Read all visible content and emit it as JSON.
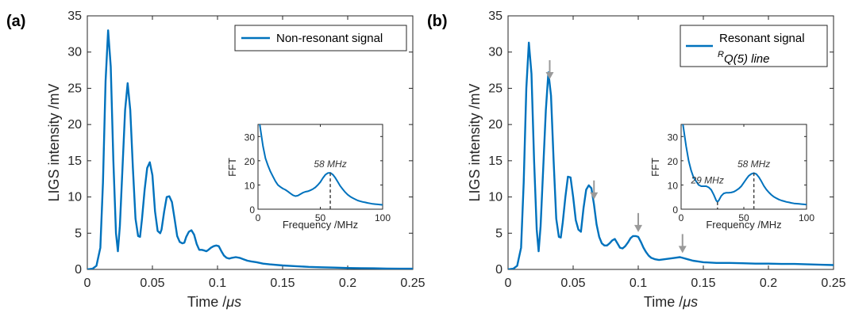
{
  "colors": {
    "series": "#0072BD",
    "arrow": "#9a9a9a",
    "axis": "#262626",
    "marker": "#444444"
  },
  "chart_data": [
    {
      "panel_label": "(a)",
      "type": "line",
      "xlabel": "Time /",
      "xlabel_unit": "μs",
      "ylabel": "LIGS intensity /mV",
      "xlim": [
        0,
        0.25
      ],
      "ylim": [
        0,
        35
      ],
      "xticks": [
        "0",
        "0.05",
        "0.1",
        "0.15",
        "0.2",
        "0.25"
      ],
      "yticks": [
        "0",
        "5",
        "10",
        "15",
        "20",
        "25",
        "30",
        "35"
      ],
      "legend": {
        "position": "top-right",
        "entries": [
          "Non-resonant signal"
        ]
      },
      "series": [
        {
          "name": "Non-resonant signal",
          "x": [
            0,
            0.004,
            0.007,
            0.01,
            0.012,
            0.014,
            0.016,
            0.018,
            0.02,
            0.022,
            0.0235,
            0.025,
            0.027,
            0.029,
            0.031,
            0.033,
            0.035,
            0.037,
            0.039,
            0.0405,
            0.042,
            0.044,
            0.046,
            0.048,
            0.05,
            0.052,
            0.054,
            0.056,
            0.057,
            0.059,
            0.061,
            0.063,
            0.065,
            0.067,
            0.069,
            0.071,
            0.073,
            0.0745,
            0.076,
            0.078,
            0.08,
            0.082,
            0.084,
            0.086,
            0.088,
            0.09,
            0.0915,
            0.093,
            0.095,
            0.097,
            0.099,
            0.101,
            0.103,
            0.105,
            0.107,
            0.109,
            0.111,
            0.114,
            0.117,
            0.12,
            0.123,
            0.126,
            0.13,
            0.135,
            0.14,
            0.15,
            0.16,
            0.17,
            0.18,
            0.19,
            0.2,
            0.21,
            0.22,
            0.23,
            0.24,
            0.25
          ],
          "y": [
            0,
            0.1,
            0.5,
            3,
            12,
            26,
            33,
            28,
            15,
            5,
            2.5,
            6,
            14,
            22,
            25.7,
            22,
            14,
            7,
            4.6,
            4.5,
            7,
            11,
            14,
            14.8,
            13,
            8,
            5.3,
            5,
            5.5,
            8,
            10,
            10.1,
            9.3,
            7,
            4.6,
            3.8,
            3.6,
            3.7,
            4.5,
            5.2,
            5.4,
            4.8,
            3.5,
            2.7,
            2.7,
            2.6,
            2.5,
            2.7,
            3,
            3.2,
            3.3,
            3.2,
            2.5,
            1.9,
            1.6,
            1.5,
            1.6,
            1.7,
            1.6,
            1.4,
            1.2,
            1.1,
            1,
            0.8,
            0.7,
            0.55,
            0.45,
            0.35,
            0.3,
            0.25,
            0.2,
            0.18,
            0.15,
            0.12,
            0.1,
            0.1
          ]
        }
      ],
      "inset": {
        "type": "line",
        "xlabel": "Frequency /MHz",
        "ylabel": "FFT",
        "xlim": [
          0,
          100
        ],
        "ylim": [
          0,
          35
        ],
        "xticks": [
          "0",
          "50",
          "100"
        ],
        "yticks": [
          "0",
          "10",
          "20",
          "30"
        ],
        "annotations": [
          {
            "text": "58 MHz",
            "x": 58,
            "y": 15
          }
        ],
        "series": [
          {
            "x": [
              0,
              2,
              4,
              6,
              8,
              10,
              12,
              14,
              16,
              18,
              20,
              22,
              24,
              26,
              28,
              30,
              32,
              34,
              36,
              38,
              40,
              42,
              44,
              46,
              48,
              50,
              52,
              54,
              56,
              58,
              60,
              62,
              64,
              66,
              68,
              70,
              72,
              74,
              76,
              78,
              80,
              82,
              84,
              86,
              88,
              90,
              92,
              94,
              96,
              98,
              100
            ],
            "y": [
              40,
              33,
              26,
              21,
              18,
              15.5,
              13.5,
              11.5,
              10,
              9.2,
              8.5,
              8,
              7.3,
              6.5,
              5.8,
              5.4,
              5.6,
              6.2,
              6.8,
              7.2,
              7.4,
              7.8,
              8.3,
              9,
              10,
              11.2,
              12.8,
              14.2,
              14.9,
              15,
              14.3,
              13,
              11.3,
              9.6,
              8.2,
              7,
              6,
              5.2,
              4.6,
              4.1,
              3.6,
              3.3,
              3,
              2.8,
              2.6,
              2.4,
              2.2,
              2.1,
              2,
              1.9,
              1.8
            ]
          }
        ]
      }
    },
    {
      "panel_label": "(b)",
      "type": "line",
      "xlabel": "Time /",
      "xlabel_unit": "μs",
      "ylabel": "LIGS intensity /mV",
      "xlim": [
        0,
        0.25
      ],
      "ylim": [
        0,
        35
      ],
      "xticks": [
        "0",
        "0.05",
        "0.1",
        "0.15",
        "0.2",
        "0.25"
      ],
      "yticks": [
        "0",
        "5",
        "10",
        "15",
        "20",
        "25",
        "30",
        "35"
      ],
      "legend": {
        "position": "top-right",
        "entries": [
          "Resonant signal"
        ],
        "subtitle_prefix": "R",
        "subtitle_main": "Q(5) line"
      },
      "arrow_x": [
        0.032,
        0.066,
        0.1,
        0.134
      ],
      "series": [
        {
          "name": "Resonant signal",
          "x": [
            0,
            0.004,
            0.007,
            0.01,
            0.012,
            0.014,
            0.016,
            0.018,
            0.02,
            0.022,
            0.0235,
            0.025,
            0.027,
            0.029,
            0.031,
            0.033,
            0.035,
            0.037,
            0.039,
            0.0405,
            0.042,
            0.044,
            0.046,
            0.048,
            0.05,
            0.052,
            0.054,
            0.056,
            0.058,
            0.06,
            0.062,
            0.064,
            0.066,
            0.068,
            0.07,
            0.072,
            0.074,
            0.076,
            0.078,
            0.08,
            0.082,
            0.084,
            0.086,
            0.088,
            0.09,
            0.092,
            0.094,
            0.096,
            0.098,
            0.1,
            0.102,
            0.104,
            0.106,
            0.108,
            0.11,
            0.113,
            0.116,
            0.12,
            0.124,
            0.128,
            0.132,
            0.134,
            0.138,
            0.142,
            0.146,
            0.15,
            0.16,
            0.17,
            0.18,
            0.19,
            0.2,
            0.21,
            0.22,
            0.23,
            0.24,
            0.25
          ],
          "y": [
            0,
            0.1,
            0.5,
            3,
            12,
            25,
            31.3,
            27,
            15,
            5.5,
            2.5,
            6,
            14,
            22,
            27.2,
            24,
            15,
            7,
            4.5,
            4.4,
            6.5,
            10,
            12.8,
            12.7,
            10,
            6.8,
            5.5,
            5.2,
            8.5,
            11,
            11.6,
            11.2,
            9,
            6.2,
            4.5,
            3.6,
            3.3,
            3.3,
            3.6,
            4,
            4.2,
            3.6,
            3,
            2.9,
            3.2,
            3.7,
            4.3,
            4.6,
            4.6,
            4.5,
            3.8,
            3,
            2.4,
            1.9,
            1.6,
            1.4,
            1.3,
            1.4,
            1.5,
            1.6,
            1.7,
            1.6,
            1.4,
            1.2,
            1.1,
            1,
            0.9,
            0.9,
            0.85,
            0.8,
            0.8,
            0.75,
            0.75,
            0.7,
            0.65,
            0.6
          ]
        }
      ],
      "inset": {
        "type": "line",
        "xlabel": "Frequency /MHz",
        "ylabel": "FFT",
        "xlim": [
          0,
          100
        ],
        "ylim": [
          0,
          35
        ],
        "xticks": [
          "0",
          "50",
          "100"
        ],
        "yticks": [
          "0",
          "10",
          "20",
          "30"
        ],
        "annotations": [
          {
            "text": "29 MHz",
            "x": 29,
            "y": 3
          },
          {
            "text": "58 MHz",
            "x": 58,
            "y": 15
          }
        ],
        "series": [
          {
            "x": [
              0,
              2,
              4,
              6,
              8,
              10,
              12,
              14,
              16,
              18,
              20,
              22,
              24,
              26,
              28,
              29,
              30,
              32,
              34,
              36,
              38,
              40,
              42,
              44,
              46,
              48,
              50,
              52,
              54,
              56,
              58,
              60,
              62,
              64,
              66,
              68,
              70,
              72,
              74,
              76,
              78,
              80,
              82,
              84,
              86,
              88,
              90,
              92,
              94,
              96,
              98,
              100
            ],
            "y": [
              40,
              33,
              26,
              20,
              16,
              13,
              11.5,
              10,
              9.5,
              9.5,
              9.5,
              9,
              8,
              6,
              3.6,
              3,
              3.6,
              5.5,
              6.5,
              6.8,
              6.8,
              6.9,
              7.2,
              7.8,
              8.5,
              9.5,
              11,
              12.5,
              13.8,
              14.6,
              14.9,
              14.5,
              13.2,
              11.5,
              9.6,
              8.1,
              6.9,
              5.9,
              5.1,
              4.5,
              4,
              3.6,
              3.3,
              3,
              2.8,
              2.6,
              2.4,
              2.3,
              2.2,
              2.1,
              2,
              1.9
            ]
          }
        ]
      }
    }
  ]
}
